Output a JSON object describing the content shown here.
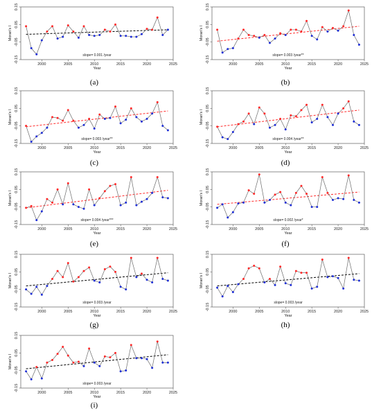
{
  "colors": {
    "above": "#ff2a2a",
    "below": "#1f2fd6",
    "line": "#6b6b6b",
    "trend_black": "#000000",
    "trend_red": "#ff2a2a"
  },
  "chart_data": [
    {
      "panel": "(a)",
      "type": "line",
      "xlabel": "Year",
      "ylabel": "Moran's I",
      "xlim": [
        1996,
        2025
      ],
      "ylim": [
        -0.15,
        0.15
      ],
      "xticks": [
        "2000",
        "2005",
        "2010",
        "2015",
        "2020",
        "2025"
      ],
      "yticks": [
        "-0.15",
        "-0.05",
        "0.05",
        "0.15"
      ],
      "slope_text": "slope= 0.001 /year",
      "trend_color": "black",
      "trend": [
        [
          1997,
          -0.006
        ],
        [
          2024,
          0.02
        ]
      ],
      "series": [
        {
          "x": [
            1997,
            1998,
            1999,
            2000,
            2001,
            2002,
            2003,
            2004,
            2005,
            2006,
            2007,
            2008,
            2009,
            2010,
            2011,
            2012,
            2013,
            2014,
            2015,
            2016,
            2017,
            2018,
            2019,
            2020,
            2021,
            2022,
            2023,
            2024
          ],
          "y": [
            0.04,
            -0.085,
            -0.12,
            -0.04,
            0.01,
            0.04,
            -0.03,
            -0.02,
            0.045,
            0.01,
            -0.025,
            0.04,
            -0.01,
            -0.015,
            -0.01,
            0.02,
            0.01,
            0.05,
            -0.015,
            -0.015,
            -0.02,
            -0.02,
            -0.005,
            0.025,
            0.02,
            0.09,
            -0.01,
            0.02
          ]
        }
      ]
    },
    {
      "panel": "(b)",
      "type": "line",
      "xlabel": "Year",
      "ylabel": "Moran's I",
      "xlim": [
        1996,
        2025
      ],
      "ylim": [
        -0.15,
        0.15
      ],
      "xticks": [
        "2000",
        "2005",
        "2010",
        "2015",
        "2020",
        "2025"
      ],
      "yticks": [
        "-0.15",
        "-0.05",
        "0.05",
        "0.15"
      ],
      "slope_text": "slope= 0.003 /year**",
      "trend_color": "red",
      "trend": [
        [
          1997,
          -0.045
        ],
        [
          2024,
          0.04
        ]
      ],
      "series": [
        {
          "x": [
            1997,
            1998,
            1999,
            2000,
            2001,
            2002,
            2003,
            2004,
            2005,
            2006,
            2007,
            2008,
            2009,
            2010,
            2011,
            2012,
            2013,
            2014,
            2015,
            2016,
            2017,
            2018,
            2019,
            2020,
            2021,
            2022,
            2023,
            2024
          ],
          "y": [
            0.02,
            -0.11,
            -0.09,
            -0.085,
            -0.03,
            0.02,
            -0.01,
            -0.015,
            -0.025,
            -0.01,
            -0.055,
            -0.03,
            0.0,
            -0.01,
            0.02,
            0.02,
            0.01,
            0.07,
            -0.015,
            -0.035,
            0.035,
            0.01,
            0.03,
            0.015,
            0.04,
            0.13,
            -0.01,
            -0.065
          ]
        }
      ]
    },
    {
      "panel": "(c)",
      "type": "line",
      "xlabel": "Year",
      "ylabel": "Moran's I",
      "xlim": [
        1996,
        2025
      ],
      "ylim": [
        -0.15,
        0.15
      ],
      "xticks": [
        "2000",
        "2005",
        "2010",
        "2015",
        "2020",
        "2025"
      ],
      "yticks": [
        "-0.15",
        "-0.05",
        "0.05",
        "0.15"
      ],
      "slope_text": "slope= 0.003 /year**",
      "trend_color": "red",
      "trend": [
        [
          1997,
          -0.055
        ],
        [
          2024,
          0.035
        ]
      ],
      "series": [
        {
          "x": [
            1997,
            1998,
            1999,
            2000,
            2001,
            2002,
            2003,
            2004,
            2005,
            2006,
            2007,
            2008,
            2009,
            2010,
            2011,
            2012,
            2013,
            2014,
            2015,
            2016,
            2017,
            2018,
            2019,
            2020,
            2021,
            2022,
            2023,
            2024
          ],
          "y": [
            -0.05,
            -0.14,
            -0.11,
            -0.09,
            -0.06,
            0.0,
            -0.005,
            -0.02,
            0.04,
            -0.02,
            -0.06,
            -0.045,
            -0.01,
            -0.065,
            0.015,
            -0.01,
            -0.005,
            0.06,
            -0.035,
            -0.015,
            0.05,
            0.0,
            -0.025,
            -0.01,
            0.02,
            0.085,
            -0.05,
            -0.075
          ]
        }
      ]
    },
    {
      "panel": "(d)",
      "type": "line",
      "xlabel": "Year",
      "ylabel": "Moran's I",
      "xlim": [
        1996,
        2025
      ],
      "ylim": [
        -0.15,
        0.15
      ],
      "xticks": [
        "2000",
        "2005",
        "2010",
        "2015",
        "2020",
        "2025"
      ],
      "yticks": [
        "-0.15",
        "-0.05",
        "0.05",
        "0.15"
      ],
      "slope_text": "slope= 0.004 /year**",
      "trend_color": "red",
      "trend": [
        [
          1997,
          -0.055
        ],
        [
          2024,
          0.04
        ]
      ],
      "series": [
        {
          "x": [
            1997,
            1998,
            1999,
            2000,
            2001,
            2002,
            2003,
            2004,
            2005,
            2006,
            2007,
            2008,
            2009,
            2010,
            2011,
            2012,
            2013,
            2014,
            2015,
            2016,
            2017,
            2018,
            2019,
            2020,
            2021,
            2022,
            2023,
            2024
          ],
          "y": [
            -0.055,
            -0.115,
            -0.125,
            -0.085,
            -0.04,
            -0.025,
            0.02,
            -0.04,
            0.055,
            0.02,
            -0.06,
            -0.045,
            -0.01,
            -0.07,
            0.01,
            0.005,
            0.04,
            0.07,
            -0.03,
            -0.01,
            0.07,
            0.0,
            -0.045,
            0.02,
            0.05,
            0.09,
            -0.025,
            -0.045
          ]
        }
      ]
    },
    {
      "panel": "(e)",
      "type": "line",
      "xlabel": "Year",
      "ylabel": "Moran's I",
      "xlim": [
        1996,
        2025
      ],
      "ylim": [
        -0.15,
        0.15
      ],
      "xticks": [
        "2000",
        "2005",
        "2010",
        "2015",
        "2020",
        "2025"
      ],
      "yticks": [
        "-0.15",
        "-0.05",
        "0.05",
        "0.15"
      ],
      "slope_text": "slope= 0.004 /year***",
      "trend_color": "red",
      "trend": [
        [
          1997,
          -0.055
        ],
        [
          2024,
          0.045
        ]
      ],
      "series": [
        {
          "x": [
            1997,
            1998,
            1999,
            2000,
            2001,
            2002,
            2003,
            2004,
            2005,
            2006,
            2007,
            2008,
            2009,
            2010,
            2011,
            2012,
            2013,
            2014,
            2015,
            2016,
            2017,
            2018,
            2019,
            2020,
            2021,
            2022,
            2023,
            2024
          ],
          "y": [
            -0.055,
            -0.045,
            -0.125,
            -0.075,
            -0.005,
            -0.025,
            0.05,
            -0.035,
            0.085,
            -0.035,
            -0.05,
            -0.06,
            0.05,
            -0.04,
            0.0,
            0.04,
            0.07,
            0.08,
            -0.04,
            -0.025,
            0.12,
            -0.04,
            -0.02,
            -0.005,
            0.03,
            0.12,
            0.005,
            0.0
          ]
        }
      ]
    },
    {
      "panel": "(f)",
      "type": "line",
      "xlabel": "Year",
      "ylabel": "Moran's I",
      "xlim": [
        1996,
        2025
      ],
      "ylim": [
        -0.15,
        0.15
      ],
      "xticks": [
        "2000",
        "2005",
        "2010",
        "2015",
        "2020",
        "2025"
      ],
      "yticks": [
        "-0.15",
        "-0.05",
        "0.05",
        "0.15"
      ],
      "slope_text": "slope= 0.002 /year*",
      "trend_color": "red",
      "trend": [
        [
          1997,
          -0.035
        ],
        [
          2024,
          0.035
        ]
      ],
      "series": [
        {
          "x": [
            1997,
            1998,
            1999,
            2000,
            2001,
            2002,
            2003,
            2004,
            2005,
            2006,
            2007,
            2008,
            2009,
            2010,
            2011,
            2012,
            2013,
            2014,
            2015,
            2016,
            2017,
            2018,
            2019,
            2020,
            2021,
            2022,
            2023,
            2024
          ],
          "y": [
            -0.055,
            -0.035,
            -0.11,
            -0.08,
            -0.03,
            -0.025,
            0.045,
            0.025,
            0.135,
            -0.025,
            -0.01,
            0.02,
            0.035,
            -0.025,
            -0.04,
            0.03,
            0.07,
            0.025,
            -0.05,
            -0.05,
            0.12,
            0.03,
            -0.01,
            0.0,
            -0.005,
            0.13,
            -0.01,
            -0.025
          ]
        }
      ]
    },
    {
      "panel": "(g)",
      "type": "line",
      "xlabel": "Year",
      "ylabel": "Moran's I",
      "xlim": [
        1996,
        2025
      ],
      "ylim": [
        -0.15,
        0.15
      ],
      "xticks": [
        "2000",
        "2005",
        "2010",
        "2015",
        "2020",
        "2025"
      ],
      "yticks": [
        "-0.15",
        "-0.05",
        "0.05",
        "0.15"
      ],
      "slope_text": "slope= 0.003 /year",
      "trend_color": "black",
      "trend": [
        [
          1997,
          -0.03
        ],
        [
          2024,
          0.045
        ]
      ],
      "series": [
        {
          "x": [
            1997,
            1998,
            1999,
            2000,
            2001,
            2002,
            2003,
            2004,
            2005,
            2006,
            2007,
            2008,
            2009,
            2010,
            2011,
            2012,
            2013,
            2014,
            2015,
            2016,
            2017,
            2018,
            2019,
            2020,
            2021,
            2022,
            2023,
            2024
          ],
          "y": [
            -0.05,
            -0.075,
            -0.035,
            -0.08,
            -0.03,
            0.01,
            0.055,
            0.02,
            0.1,
            -0.005,
            0.02,
            0.055,
            0.075,
            0.0,
            -0.01,
            0.065,
            0.08,
            0.05,
            -0.035,
            -0.05,
            0.13,
            0.02,
            0.04,
            0.005,
            -0.01,
            0.13,
            0.01,
            0.0
          ]
        }
      ]
    },
    {
      "panel": "(h)",
      "type": "line",
      "xlabel": "Year",
      "ylabel": "Moran's I",
      "xlim": [
        1996,
        2025
      ],
      "ylim": [
        -0.15,
        0.15
      ],
      "xticks": [
        "2000",
        "2005",
        "2010",
        "2015",
        "2020",
        "2025"
      ],
      "yticks": [
        "-0.15",
        "-0.05",
        "0.05",
        "0.15"
      ],
      "slope_text": "slope= 0.003 /year",
      "trend_color": "black",
      "trend": [
        [
          1997,
          -0.03
        ],
        [
          2024,
          0.04
        ]
      ],
      "series": [
        {
          "x": [
            1997,
            1998,
            1999,
            2000,
            2001,
            2002,
            2003,
            2004,
            2005,
            2006,
            2007,
            2008,
            2009,
            2010,
            2011,
            2012,
            2013,
            2014,
            2015,
            2016,
            2017,
            2018,
            2019,
            2020,
            2021,
            2022,
            2023,
            2024
          ],
          "y": [
            -0.04,
            -0.09,
            -0.03,
            -0.065,
            -0.02,
            0.01,
            0.07,
            0.085,
            0.07,
            -0.01,
            0.01,
            -0.025,
            0.08,
            -0.015,
            -0.025,
            0.055,
            0.045,
            0.045,
            -0.045,
            -0.035,
            0.12,
            0.02,
            0.025,
            0.015,
            -0.045,
            0.13,
            0.005,
            0.0
          ]
        }
      ]
    },
    {
      "panel": "(i)",
      "type": "line",
      "xlabel": "Year",
      "ylabel": "Moran's I",
      "xlim": [
        1996,
        2025
      ],
      "ylim": [
        -0.15,
        0.15
      ],
      "xticks": [
        "2000",
        "2005",
        "2010",
        "2015",
        "2020",
        "2025"
      ],
      "yticks": [
        "-0.15",
        "-0.05",
        "0.05",
        "0.15"
      ],
      "slope_text": "slope= 0.003 /year",
      "trend_color": "black",
      "trend": [
        [
          1997,
          -0.04
        ],
        [
          2024,
          0.04
        ]
      ],
      "series": [
        {
          "x": [
            1997,
            1998,
            1999,
            2000,
            2001,
            2002,
            2003,
            2004,
            2005,
            2006,
            2007,
            2008,
            2009,
            2010,
            2011,
            2012,
            2013,
            2014,
            2015,
            2016,
            2017,
            2018,
            2019,
            2020,
            2021,
            2022,
            2023,
            2024
          ],
          "y": [
            -0.055,
            -0.1,
            -0.03,
            -0.095,
            -0.005,
            0.01,
            0.045,
            0.085,
            0.035,
            -0.005,
            0.0,
            -0.025,
            0.075,
            -0.005,
            -0.025,
            0.03,
            0.025,
            0.05,
            -0.055,
            -0.05,
            0.095,
            0.02,
            0.02,
            0.015,
            -0.035,
            0.115,
            -0.005,
            -0.005
          ]
        }
      ]
    }
  ]
}
